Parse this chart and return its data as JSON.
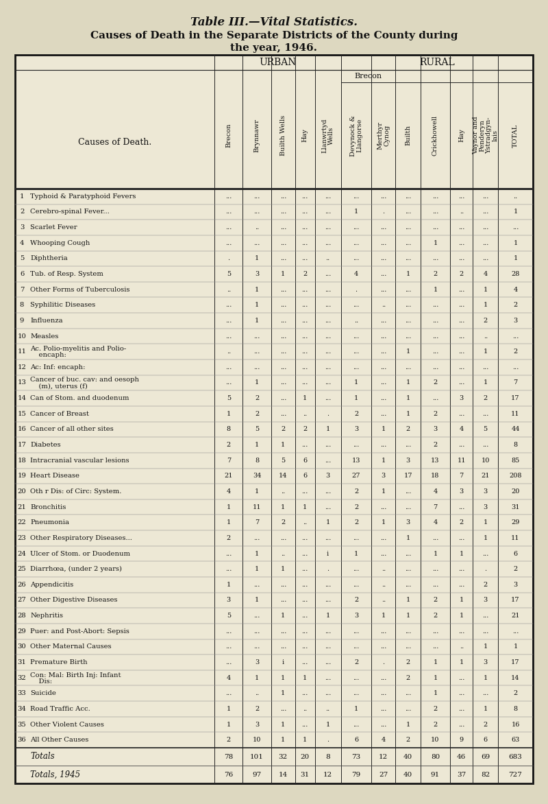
{
  "title1": "Table III.—Vital Statistics.",
  "title2": "Causes of Death in the Separate Districts of the County during",
  "title3": "the year, 1946.",
  "bg_color": "#ddd8c0",
  "table_bg": "#ede8d5",
  "rows": [
    {
      "num": "1",
      "cause": "Typhoid & Paratyphoid Fevers",
      "two_line": false,
      "vals": [
        "...",
        "...",
        "...",
        "...",
        "...",
        "...",
        "...",
        "...",
        "...",
        "...",
        "...",
        ".."
      ]
    },
    {
      "num": "2",
      "cause": "Cerebro-spinal Fever...",
      "two_line": false,
      "vals": [
        "...",
        "...",
        "...",
        "...",
        "...",
        "1",
        ".",
        "...",
        "...",
        "..",
        "...",
        "1"
      ]
    },
    {
      "num": "3",
      "cause": "Scarlet Fever",
      "two_line": false,
      "vals": [
        "...",
        "..",
        "...",
        "...",
        "...",
        "...",
        "...",
        "...",
        "...",
        "...",
        "...",
        "..."
      ]
    },
    {
      "num": "4",
      "cause": "Whooping Cough",
      "two_line": false,
      "vals": [
        "...",
        "...",
        "...",
        "...",
        "...",
        "...",
        "...",
        "...",
        "1",
        "...",
        "...",
        "1"
      ]
    },
    {
      "num": "5",
      "cause": "Diphtheria",
      "two_line": false,
      "vals": [
        ".",
        "1",
        "...",
        "...",
        "..",
        "...",
        "...",
        "...",
        "...",
        "...",
        "...",
        "1"
      ]
    },
    {
      "num": "6",
      "cause": "Tub. of Resp. System",
      "two_line": false,
      "vals": [
        "5",
        "3",
        "1",
        "2",
        "...",
        "4",
        "...",
        "1",
        "2",
        "2",
        "4",
        "28"
      ]
    },
    {
      "num": "7",
      "cause": "Other Forms of Tuberculosis",
      "two_line": false,
      "vals": [
        "..",
        "1",
        "...",
        "...",
        "...",
        ".",
        "...",
        "...",
        "1",
        "...",
        "1",
        "4"
      ]
    },
    {
      "num": "8",
      "cause": "Syphilitic Diseases",
      "two_line": false,
      "vals": [
        "...",
        "1",
        "...",
        "...",
        "...",
        "...",
        "..",
        "...",
        "...",
        "...",
        "1",
        "2"
      ]
    },
    {
      "num": "9",
      "cause": "Influenza",
      "two_line": false,
      "vals": [
        "...",
        "1",
        "...",
        "...",
        "...",
        "..",
        "...",
        "...",
        "...",
        "...",
        "2",
        "3"
      ]
    },
    {
      "num": "10",
      "cause": "Measles",
      "two_line": false,
      "vals": [
        "...",
        "...",
        "...",
        "...",
        "...",
        "...",
        "...",
        "...",
        "...",
        "...",
        "..",
        "..."
      ]
    },
    {
      "num": "11",
      "cause": "Ac. Polio-myelitis and Polio-",
      "cause2": "    encaph:",
      "two_line": true,
      "vals": [
        "..",
        "...",
        "...",
        "...",
        "...",
        "...",
        "...",
        "1",
        "...",
        "...",
        "1",
        "2"
      ]
    },
    {
      "num": "12",
      "cause": "Ac: Inf: encaph:",
      "two_line": false,
      "vals": [
        "...",
        "...",
        "...",
        "...",
        "...",
        "...",
        "...",
        "...",
        "...",
        "...",
        "...",
        "..."
      ]
    },
    {
      "num": "13",
      "cause": "Cancer of buc. cav: and oesoph",
      "cause2": "    (m), uterus (f)",
      "two_line": true,
      "vals": [
        "...",
        "1",
        "...",
        "...",
        "...",
        "1",
        "...",
        "1",
        "2",
        "...",
        "1",
        "7"
      ]
    },
    {
      "num": "14",
      "cause": "Can of Stom. and duodenum",
      "two_line": false,
      "vals": [
        "5",
        "2",
        "...",
        "1",
        "...",
        "1",
        "...",
        "1",
        "...",
        "3",
        "2",
        "17"
      ]
    },
    {
      "num": "15",
      "cause": "Cancer of Breast",
      "two_line": false,
      "vals": [
        "1",
        "2",
        "...",
        "..",
        ".",
        "2",
        "...",
        "1",
        "2",
        "...",
        "...",
        "11"
      ]
    },
    {
      "num": "16",
      "cause": "Cancer of all other sites",
      "two_line": false,
      "vals": [
        "8",
        "5",
        "2",
        "2",
        "1",
        "3",
        "1",
        "2",
        "3",
        "4",
        "5",
        "44"
      ]
    },
    {
      "num": "17",
      "cause": "Diabetes",
      "two_line": false,
      "vals": [
        "2",
        "1",
        "1",
        "...",
        "...",
        "...",
        "...",
        "...",
        "2",
        "...",
        "...",
        "8"
      ]
    },
    {
      "num": "18",
      "cause": "Intracranial vascular lesions",
      "two_line": false,
      "vals": [
        "7",
        "8",
        "5",
        "6",
        "...",
        "13",
        "1",
        "3",
        "13",
        "11",
        "10",
        "85"
      ]
    },
    {
      "num": "19",
      "cause": "Heart Disease",
      "two_line": false,
      "vals": [
        "21",
        "34",
        "14",
        "6",
        "3",
        "27",
        "3",
        "17",
        "18",
        "7",
        "21",
        "208"
      ]
    },
    {
      "num": "20",
      "cause": "Oth r Dis: of Circ: System.",
      "two_line": false,
      "vals": [
        "4",
        "1",
        "..",
        "...",
        "...",
        "2",
        "1",
        "...",
        "4",
        "3",
        "3",
        "20"
      ]
    },
    {
      "num": "21",
      "cause": "Bronchitis",
      "two_line": false,
      "vals": [
        "1",
        "11",
        "1",
        "1",
        "...",
        "2",
        "...",
        "...",
        "7",
        "...",
        "3",
        "31"
      ]
    },
    {
      "num": "22",
      "cause": "Pneumonia",
      "two_line": false,
      "vals": [
        "1",
        "7",
        "2",
        "..",
        "1",
        "2",
        "1",
        "3",
        "4",
        "2",
        "1",
        "29"
      ]
    },
    {
      "num": "23",
      "cause": "Other Respiratory Diseases...",
      "two_line": false,
      "vals": [
        "2",
        "...",
        "...",
        "...",
        "...",
        "...",
        "...",
        "1",
        "...",
        "...",
        "1",
        "11"
      ]
    },
    {
      "num": "24",
      "cause": "Ulcer of Stom. or Duodenum",
      "two_line": false,
      "vals": [
        "...",
        "1",
        "..",
        "...",
        "i",
        "1",
        "...",
        "...",
        "1",
        "1",
        "...",
        "6"
      ]
    },
    {
      "num": "25",
      "cause": "Diarrhœa, (under 2 years)",
      "two_line": false,
      "vals": [
        "...",
        "1",
        "1",
        "...",
        ".",
        "...",
        "..",
        "...",
        "...",
        "...",
        ".",
        "2"
      ]
    },
    {
      "num": "26",
      "cause": "Appendicitis",
      "two_line": false,
      "vals": [
        "1",
        "...",
        "...",
        "...",
        "...",
        "...",
        "..",
        "...",
        "...",
        "...",
        "2",
        "3"
      ]
    },
    {
      "num": "27",
      "cause": "Other Digestive Diseases",
      "two_line": false,
      "vals": [
        "3",
        "1",
        "...",
        "...",
        "...",
        "2",
        "..",
        "1",
        "2",
        "1",
        "3",
        "17"
      ]
    },
    {
      "num": "28",
      "cause": "Nephritis",
      "two_line": false,
      "vals": [
        "5",
        "...",
        "1",
        "...",
        "1",
        "3",
        "1",
        "1",
        "2",
        "1",
        "...",
        "21"
      ]
    },
    {
      "num": "29",
      "cause": "Puer: and Post-Abort: Sepsis",
      "two_line": false,
      "vals": [
        "...",
        "...",
        "...",
        "...",
        "...",
        "...",
        "...",
        "...",
        "...",
        "...",
        "...",
        "..."
      ]
    },
    {
      "num": "30",
      "cause": "Other Maternal Causes",
      "two_line": false,
      "vals": [
        "...",
        "...",
        "...",
        "...",
        "...",
        "...",
        "...",
        "...",
        "...",
        "..",
        "1",
        "1"
      ]
    },
    {
      "num": "31",
      "cause": "Premature Birth",
      "two_line": false,
      "vals": [
        "...",
        "3",
        "i",
        "...",
        "...",
        "2",
        ".",
        "2",
        "1",
        "1",
        "3",
        "17"
      ]
    },
    {
      "num": "32",
      "cause": "Con: Mal: Birth Inj: Infant",
      "cause2": "    Dis:",
      "two_line": true,
      "vals": [
        "4",
        "1",
        "1",
        "1",
        "...",
        "...",
        "...",
        "2",
        "1",
        "...",
        "1",
        "14"
      ]
    },
    {
      "num": "33",
      "cause": "Suicide",
      "two_line": false,
      "vals": [
        "...",
        "..",
        "1",
        "...",
        "...",
        "...",
        "...",
        "...",
        "1",
        "...",
        "...",
        "2"
      ]
    },
    {
      "num": "34",
      "cause": "Road Traffic Acc.",
      "two_line": false,
      "vals": [
        "1",
        "2",
        "...",
        "..",
        "..",
        "1",
        "...",
        "...",
        "2",
        "...",
        "1",
        "8"
      ]
    },
    {
      "num": "35",
      "cause": "Other Violent Causes",
      "two_line": false,
      "vals": [
        "1",
        "3",
        "1",
        "...",
        "1",
        "...",
        "...",
        "1",
        "2",
        "...",
        "2",
        "16"
      ]
    },
    {
      "num": "36",
      "cause": "All Other Causes",
      "two_line": false,
      "vals": [
        "2",
        "10",
        "1",
        "1",
        ".",
        "6",
        "4",
        "2",
        "10",
        "9",
        "6",
        "63"
      ]
    }
  ],
  "totals_row": [
    "78",
    "101",
    "32",
    "20",
    "8",
    "73",
    "12",
    "40",
    "80",
    "46",
    "69",
    "683"
  ],
  "totals_1945": [
    "76",
    "97",
    "14",
    "31",
    "12",
    "79",
    "27",
    "40",
    "91",
    "37",
    "82",
    "727"
  ],
  "col_labels": [
    "Brecon",
    "Brynnawr",
    "Builth Wells",
    "Hay",
    "Llanwrtyd\nWells",
    "Devynock &\nLlangorse",
    "Merthyr\nCynog",
    "Builth",
    "Crickhowell",
    "Hay",
    "Vaynor and\nPenderyn\nYstradgyn-\nlais",
    "TOTAL"
  ]
}
